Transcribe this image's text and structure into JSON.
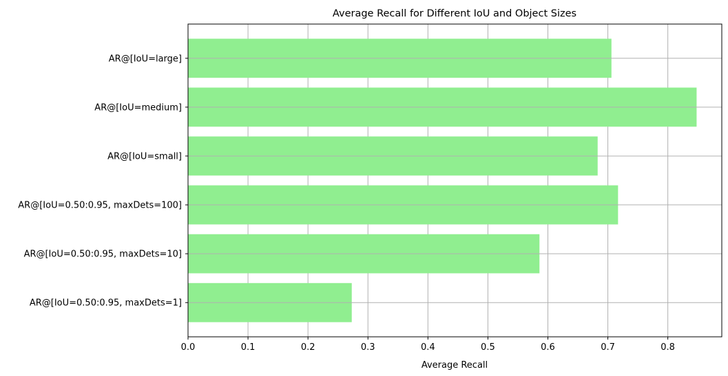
{
  "chart_data": {
    "type": "bar",
    "orientation": "horizontal",
    "title": "Average Recall for Different IoU and Object Sizes",
    "xlabel": "Average Recall",
    "ylabel": "",
    "categories": [
      "AR@[IoU=0.50:0.95, maxDets=1]",
      "AR@[IoU=0.50:0.95, maxDets=10]",
      "AR@[IoU=0.50:0.95, maxDets=100]",
      "AR@[IoU=small]",
      "AR@[IoU=medium]",
      "AR@[IoU=large]"
    ],
    "values": [
      0.273,
      0.586,
      0.717,
      0.683,
      0.848,
      0.706
    ],
    "xlim": [
      0,
      0.89
    ],
    "xticks": [
      "0.0",
      "0.1",
      "0.2",
      "0.3",
      "0.4",
      "0.5",
      "0.6",
      "0.7",
      "0.8"
    ],
    "grid": true,
    "bar_color": "#90ee90",
    "grid_color": "#b0b0b0"
  }
}
